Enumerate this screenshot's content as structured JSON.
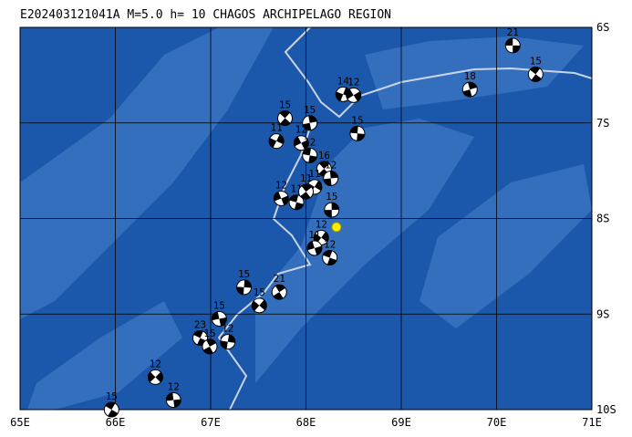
{
  "map": {
    "title": "E202403121041A  M=5.0  h= 10  CHAGOS ARCHIPELAGO REGION",
    "xlim": [
      65,
      71
    ],
    "ylim": [
      -10,
      -6
    ],
    "xticks": [
      {
        "value": 65,
        "label": "65E"
      },
      {
        "value": 66,
        "label": "66E"
      },
      {
        "value": 67,
        "label": "67E"
      },
      {
        "value": 68,
        "label": "68E"
      },
      {
        "value": 69,
        "label": "69E"
      },
      {
        "value": 70,
        "label": "70E"
      },
      {
        "value": 71,
        "label": "71E"
      }
    ],
    "yticks": [
      {
        "value": -6,
        "label": "6S"
      },
      {
        "value": -7,
        "label": "7S"
      },
      {
        "value": -8,
        "label": "8S"
      },
      {
        "value": -9,
        "label": "9S"
      },
      {
        "value": -10,
        "label": "10S"
      }
    ],
    "epicenter": {
      "lon": 68.32,
      "lat": -8.09
    },
    "events": [
      {
        "lon": 70.17,
        "lat": -6.19,
        "depth": 21
      },
      {
        "lon": 70.41,
        "lat": -6.49,
        "depth": 15
      },
      {
        "lon": 69.72,
        "lat": -6.65,
        "depth": 18
      },
      {
        "lon": 68.39,
        "lat": -6.7,
        "depth": 14
      },
      {
        "lon": 68.5,
        "lat": -6.71,
        "depth": 12
      },
      {
        "lon": 68.54,
        "lat": -7.11,
        "depth": 15
      },
      {
        "lon": 67.78,
        "lat": -6.95,
        "depth": 15
      },
      {
        "lon": 68.04,
        "lat": -7.0,
        "depth": 15
      },
      {
        "lon": 67.69,
        "lat": -7.19,
        "depth": 11
      },
      {
        "lon": 67.95,
        "lat": -7.21,
        "depth": 12
      },
      {
        "lon": 68.04,
        "lat": -7.34,
        "depth": 12
      },
      {
        "lon": 68.19,
        "lat": -7.48,
        "depth": 16
      },
      {
        "lon": 68.26,
        "lat": -7.58,
        "depth": 12
      },
      {
        "lon": 68.09,
        "lat": -7.67,
        "depth": 11
      },
      {
        "lon": 67.74,
        "lat": -7.79,
        "depth": 12
      },
      {
        "lon": 67.9,
        "lat": -7.83,
        "depth": 11
      },
      {
        "lon": 68.0,
        "lat": -7.72,
        "depth": 11
      },
      {
        "lon": 68.27,
        "lat": -7.91,
        "depth": 15
      },
      {
        "lon": 68.16,
        "lat": -8.2,
        "depth": 12
      },
      {
        "lon": 68.09,
        "lat": -8.31,
        "depth": 11
      },
      {
        "lon": 68.25,
        "lat": -8.41,
        "depth": 12
      },
      {
        "lon": 67.72,
        "lat": -8.77,
        "depth": 21
      },
      {
        "lon": 67.35,
        "lat": -8.72,
        "depth": 15
      },
      {
        "lon": 67.51,
        "lat": -8.91,
        "depth": 15
      },
      {
        "lon": 67.09,
        "lat": -9.05,
        "depth": 15
      },
      {
        "lon": 66.89,
        "lat": -9.25,
        "depth": 23
      },
      {
        "lon": 66.99,
        "lat": -9.34,
        "depth": 15
      },
      {
        "lon": 67.18,
        "lat": -9.29,
        "depth": 12
      },
      {
        "lon": 66.42,
        "lat": -9.66,
        "depth": 12
      },
      {
        "lon": 66.61,
        "lat": -9.9,
        "depth": 12
      },
      {
        "lon": 65.96,
        "lat": -10.0,
        "depth": 15
      }
    ]
  }
}
